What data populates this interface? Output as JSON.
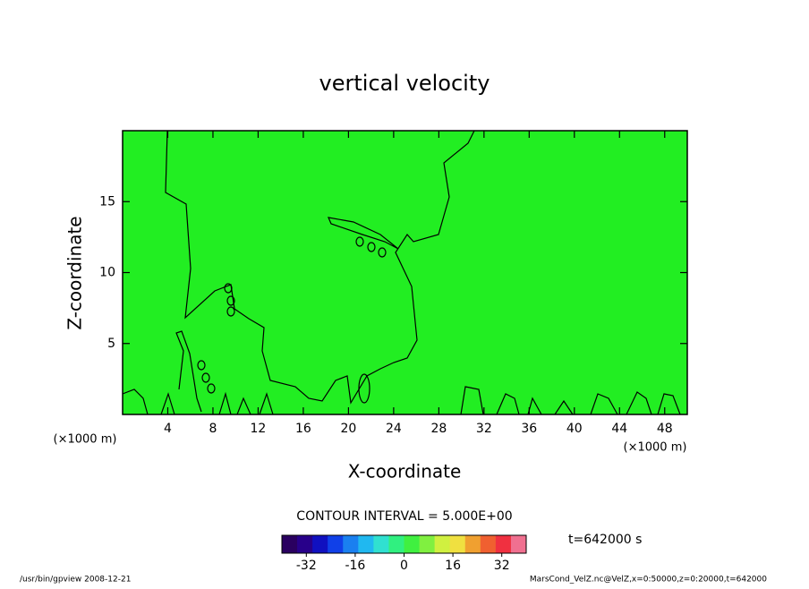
{
  "chart_data": {
    "type": "contour",
    "title": "vertical velocity",
    "xlabel": "X-coordinate",
    "ylabel": "Z-coordinate",
    "x_unit": "(×1000 m)",
    "xlim": [
      0,
      50
    ],
    "xticks": [
      4,
      8,
      12,
      16,
      20,
      24,
      28,
      32,
      36,
      40,
      44,
      48
    ],
    "ylim": [
      0,
      20
    ],
    "yticks": [
      5,
      10,
      15
    ],
    "fill_color": "#22ee22",
    "contour_interval": "CONTOUR INTERVAL = 5.000E+00",
    "time_label": "t=642000 s",
    "colorbar": {
      "lim": [
        -40,
        40
      ],
      "ticks": [
        -32,
        -16,
        0,
        16,
        32
      ],
      "colors": [
        "#2a0060",
        "#28008a",
        "#1010c0",
        "#1040e8",
        "#1a80f0",
        "#20b8f0",
        "#30e0d0",
        "#30f080",
        "#40f040",
        "#80f040",
        "#d0f040",
        "#f0e040",
        "#f0a030",
        "#f06030",
        "#f03040",
        "#f07090"
      ]
    },
    "footer_left": "/usr/bin/gpview   2008-12-21",
    "footer_right": "MarsCond_VelZ.nc@VelZ,x=0:50000,z=0:20000,t=642000"
  }
}
